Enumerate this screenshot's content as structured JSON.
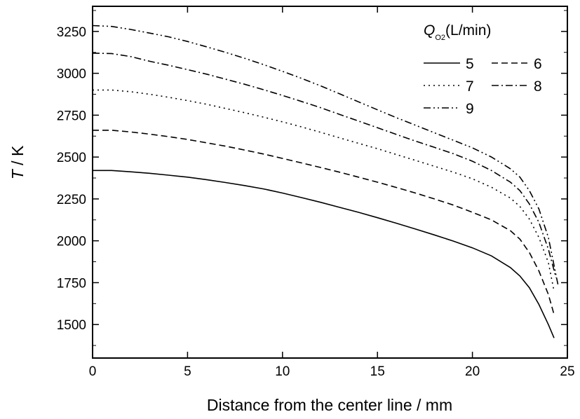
{
  "chart_data": {
    "type": "line",
    "xlabel": "Distance from the center line / mm",
    "ylabel_symbol": "T",
    "ylabel_rest": " / K",
    "xlim": [
      0,
      25
    ],
    "ylim": [
      1300,
      3400
    ],
    "xticks": [
      0,
      5,
      10,
      15,
      20,
      25
    ],
    "yticks": [
      1500,
      1750,
      2000,
      2250,
      2500,
      2750,
      3000,
      3250
    ],
    "grid": false,
    "legend": {
      "title_symbol": "Q",
      "title_subscript": "O2",
      "title_rest": "(L/min)",
      "placement": "top-right"
    },
    "series": [
      {
        "name": "5",
        "dash": "solid",
        "points": [
          [
            0,
            2420
          ],
          [
            1,
            2420
          ],
          [
            2,
            2412
          ],
          [
            3,
            2403
          ],
          [
            4,
            2392
          ],
          [
            5,
            2380
          ],
          [
            6,
            2365
          ],
          [
            7,
            2348
          ],
          [
            8,
            2330
          ],
          [
            9,
            2310
          ],
          [
            10,
            2285
          ],
          [
            11,
            2258
          ],
          [
            12,
            2230
          ],
          [
            13,
            2200
          ],
          [
            14,
            2170
          ],
          [
            15,
            2138
          ],
          [
            16,
            2105
          ],
          [
            17,
            2070
          ],
          [
            18,
            2035
          ],
          [
            19,
            1998
          ],
          [
            20,
            1958
          ],
          [
            21,
            1910
          ],
          [
            22,
            1840
          ],
          [
            22.5,
            1790
          ],
          [
            23,
            1720
          ],
          [
            23.5,
            1620
          ],
          [
            24,
            1500
          ],
          [
            24.3,
            1420
          ]
        ]
      },
      {
        "name": "6",
        "dash": "dash",
        "points": [
          [
            0,
            2660
          ],
          [
            1,
            2660
          ],
          [
            2,
            2650
          ],
          [
            3,
            2637
          ],
          [
            4,
            2622
          ],
          [
            5,
            2605
          ],
          [
            6,
            2585
          ],
          [
            7,
            2565
          ],
          [
            8,
            2542
          ],
          [
            9,
            2518
          ],
          [
            10,
            2492
          ],
          [
            11,
            2465
          ],
          [
            12,
            2438
          ],
          [
            13,
            2410
          ],
          [
            14,
            2380
          ],
          [
            15,
            2350
          ],
          [
            16,
            2318
          ],
          [
            17,
            2285
          ],
          [
            18,
            2250
          ],
          [
            19,
            2213
          ],
          [
            20,
            2170
          ],
          [
            21,
            2125
          ],
          [
            22,
            2060
          ],
          [
            22.5,
            2010
          ],
          [
            23,
            1930
          ],
          [
            23.5,
            1820
          ],
          [
            24,
            1680
          ],
          [
            24.3,
            1560
          ]
        ]
      },
      {
        "name": "7",
        "dash": "dot",
        "points": [
          [
            0,
            2900
          ],
          [
            1,
            2900
          ],
          [
            2,
            2890
          ],
          [
            3,
            2875
          ],
          [
            4,
            2857
          ],
          [
            5,
            2837
          ],
          [
            6,
            2815
          ],
          [
            7,
            2790
          ],
          [
            8,
            2765
          ],
          [
            9,
            2738
          ],
          [
            10,
            2710
          ],
          [
            11,
            2680
          ],
          [
            12,
            2648
          ],
          [
            13,
            2615
          ],
          [
            14,
            2582
          ],
          [
            15,
            2550
          ],
          [
            16,
            2515
          ],
          [
            17,
            2480
          ],
          [
            18,
            2445
          ],
          [
            19,
            2410
          ],
          [
            20,
            2370
          ],
          [
            21,
            2320
          ],
          [
            22,
            2255
          ],
          [
            22.5,
            2205
          ],
          [
            23,
            2130
          ],
          [
            23.5,
            2020
          ],
          [
            24,
            1870
          ],
          [
            24.3,
            1700
          ]
        ]
      },
      {
        "name": "8",
        "dash": "dashdot",
        "points": [
          [
            0,
            3120
          ],
          [
            1,
            3118
          ],
          [
            2,
            3100
          ],
          [
            3,
            3072
          ],
          [
            4,
            3048
          ],
          [
            5,
            3022
          ],
          [
            6,
            2995
          ],
          [
            7,
            2965
          ],
          [
            8,
            2935
          ],
          [
            9,
            2902
          ],
          [
            10,
            2868
          ],
          [
            11,
            2832
          ],
          [
            12,
            2795
          ],
          [
            13,
            2755
          ],
          [
            14,
            2715
          ],
          [
            15,
            2675
          ],
          [
            16,
            2635
          ],
          [
            17,
            2595
          ],
          [
            18,
            2558
          ],
          [
            19,
            2520
          ],
          [
            20,
            2475
          ],
          [
            21,
            2420
          ],
          [
            22,
            2350
          ],
          [
            22.5,
            2300
          ],
          [
            23,
            2220
          ],
          [
            23.5,
            2110
          ],
          [
            24,
            1950
          ],
          [
            24.4,
            1780
          ]
        ]
      },
      {
        "name": "9",
        "dash": "dashdotdot",
        "points": [
          [
            0,
            3285
          ],
          [
            1,
            3280
          ],
          [
            2,
            3262
          ],
          [
            3,
            3240
          ],
          [
            4,
            3218
          ],
          [
            5,
            3190
          ],
          [
            6,
            3158
          ],
          [
            7,
            3125
          ],
          [
            8,
            3090
          ],
          [
            9,
            3052
          ],
          [
            10,
            3012
          ],
          [
            11,
            2970
          ],
          [
            12,
            2925
          ],
          [
            13,
            2878
          ],
          [
            14,
            2830
          ],
          [
            15,
            2782
          ],
          [
            16,
            2735
          ],
          [
            17,
            2690
          ],
          [
            18,
            2645
          ],
          [
            19,
            2600
          ],
          [
            20,
            2555
          ],
          [
            21,
            2500
          ],
          [
            22,
            2430
          ],
          [
            22.5,
            2380
          ],
          [
            23,
            2300
          ],
          [
            23.5,
            2190
          ],
          [
            24,
            2020
          ],
          [
            24.5,
            1740
          ]
        ]
      }
    ]
  }
}
